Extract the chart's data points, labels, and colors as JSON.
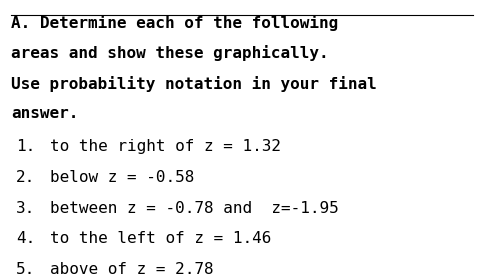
{
  "title_line1": "A. Determine each of the following",
  "title_line2": "areas and show these graphically.",
  "title_line3": "Use probability notation in your final",
  "title_line4": "answer.",
  "items": [
    "to the right of z = 1.32",
    "below z = -0.58",
    "between z = -0.78 and  z=-1.95",
    "to the left of z = 1.46",
    "above of z = 2.78"
  ],
  "background_color": "#ffffff",
  "text_color": "#000000",
  "title_fontsize": 11.5,
  "body_fontsize": 11.5,
  "underline_color": "#000000"
}
